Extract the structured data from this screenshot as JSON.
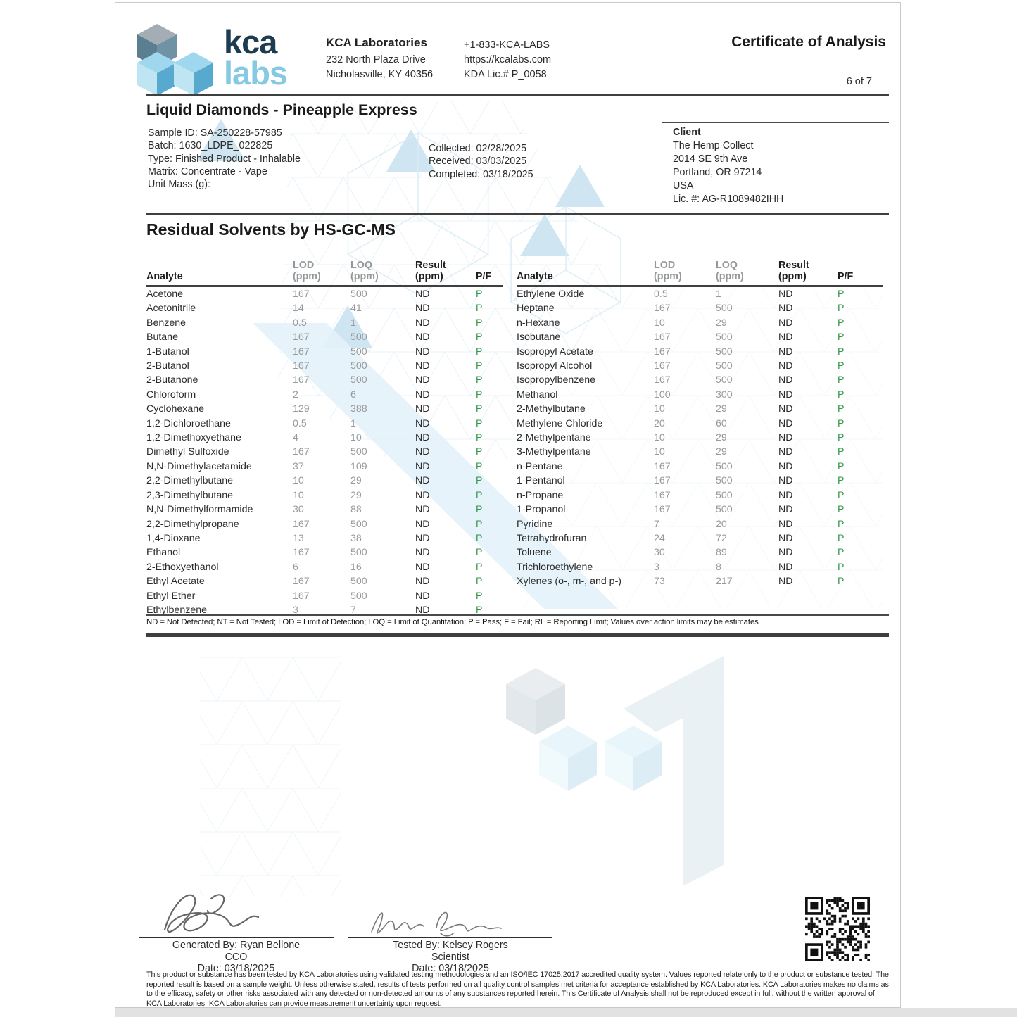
{
  "colors": {
    "brand_navy": "#1d3c50",
    "brand_light_blue": "#85c9e2",
    "pass_green": "#35984a",
    "muted_value_gray": "#97999b"
  },
  "header": {
    "logo_word_1": "kca",
    "logo_word_2": "labs",
    "lab_name": "KCA Laboratories",
    "address_line1": "232 North Plaza Drive",
    "address_line2": "Nicholasville, KY 40356",
    "phone": "+1-833-KCA-LABS",
    "website": "https://kcalabs.com",
    "kda_license": "KDA Lic.# P_0058",
    "doc_title": "Certificate of Analysis",
    "page_indicator": "6 of 7"
  },
  "sample": {
    "product_name": "Liquid Diamonds - Pineapple Express",
    "fields": [
      "Sample ID: SA-250228-57985",
      "Batch: 1630_LDPE_022825",
      "Type: Finished Product - Inhalable",
      "Matrix: Concentrate - Vape",
      "Unit Mass (g):"
    ],
    "dates": [
      "Collected: 02/28/2025",
      "Received: 03/03/2025",
      "Completed: 03/18/2025"
    ]
  },
  "client": {
    "heading": "Client",
    "lines": [
      "The Hemp Collect",
      "2014 SE 9th Ave",
      "Portland, OR 97214",
      "USA",
      "Lic. #: AG-R1089482IHH"
    ]
  },
  "section": {
    "title": "Residual Solvents by HS-GC-MS"
  },
  "table": {
    "headers": {
      "analyte": "Analyte",
      "lod": "LOD",
      "loq": "LOQ",
      "result": "Result",
      "unit": "(ppm)",
      "pf": "P/F"
    },
    "left_rows": [
      [
        "Acetone",
        "167",
        "500",
        "ND",
        "P"
      ],
      [
        "Acetonitrile",
        "14",
        "41",
        "ND",
        "P"
      ],
      [
        "Benzene",
        "0.5",
        "1",
        "ND",
        "P"
      ],
      [
        "Butane",
        "167",
        "500",
        "ND",
        "P"
      ],
      [
        "1-Butanol",
        "167",
        "500",
        "ND",
        "P"
      ],
      [
        "2-Butanol",
        "167",
        "500",
        "ND",
        "P"
      ],
      [
        "2-Butanone",
        "167",
        "500",
        "ND",
        "P"
      ],
      [
        "Chloroform",
        "2",
        "6",
        "ND",
        "P"
      ],
      [
        "Cyclohexane",
        "129",
        "388",
        "ND",
        "P"
      ],
      [
        "1,2-Dichloroethane",
        "0.5",
        "1",
        "ND",
        "P"
      ],
      [
        "1,2-Dimethoxyethane",
        "4",
        "10",
        "ND",
        "P"
      ],
      [
        "Dimethyl Sulfoxide",
        "167",
        "500",
        "ND",
        "P"
      ],
      [
        "N,N-Dimethylacetamide",
        "37",
        "109",
        "ND",
        "P"
      ],
      [
        "2,2-Dimethylbutane",
        "10",
        "29",
        "ND",
        "P"
      ],
      [
        "2,3-Dimethylbutane",
        "10",
        "29",
        "ND",
        "P"
      ],
      [
        "N,N-Dimethylformamide",
        "30",
        "88",
        "ND",
        "P"
      ],
      [
        "2,2-Dimethylpropane",
        "167",
        "500",
        "ND",
        "P"
      ],
      [
        "1,4-Dioxane",
        "13",
        "38",
        "ND",
        "P"
      ],
      [
        "Ethanol",
        "167",
        "500",
        "ND",
        "P"
      ],
      [
        "2-Ethoxyethanol",
        "6",
        "16",
        "ND",
        "P"
      ],
      [
        "Ethyl Acetate",
        "167",
        "500",
        "ND",
        "P"
      ],
      [
        "Ethyl Ether",
        "167",
        "500",
        "ND",
        "P"
      ],
      [
        "Ethylbenzene",
        "3",
        "7",
        "ND",
        "P"
      ]
    ],
    "right_rows": [
      [
        "Ethylene Oxide",
        "0.5",
        "1",
        "ND",
        "P"
      ],
      [
        "Heptane",
        "167",
        "500",
        "ND",
        "P"
      ],
      [
        "n-Hexane",
        "10",
        "29",
        "ND",
        "P"
      ],
      [
        "Isobutane",
        "167",
        "500",
        "ND",
        "P"
      ],
      [
        "Isopropyl Acetate",
        "167",
        "500",
        "ND",
        "P"
      ],
      [
        "Isopropyl Alcohol",
        "167",
        "500",
        "ND",
        "P"
      ],
      [
        "Isopropylbenzene",
        "167",
        "500",
        "ND",
        "P"
      ],
      [
        "Methanol",
        "100",
        "300",
        "ND",
        "P"
      ],
      [
        "2-Methylbutane",
        "10",
        "29",
        "ND",
        "P"
      ],
      [
        "Methylene Chloride",
        "20",
        "60",
        "ND",
        "P"
      ],
      [
        "2-Methylpentane",
        "10",
        "29",
        "ND",
        "P"
      ],
      [
        "3-Methylpentane",
        "10",
        "29",
        "ND",
        "P"
      ],
      [
        "n-Pentane",
        "167",
        "500",
        "ND",
        "P"
      ],
      [
        "1-Pentanol",
        "167",
        "500",
        "ND",
        "P"
      ],
      [
        "n-Propane",
        "167",
        "500",
        "ND",
        "P"
      ],
      [
        "1-Propanol",
        "167",
        "500",
        "ND",
        "P"
      ],
      [
        "Pyridine",
        "7",
        "20",
        "ND",
        "P"
      ],
      [
        "Tetrahydrofuran",
        "24",
        "72",
        "ND",
        "P"
      ],
      [
        "Toluene",
        "30",
        "89",
        "ND",
        "P"
      ],
      [
        "Trichloroethylene",
        "3",
        "8",
        "ND",
        "P"
      ],
      [
        "Xylenes (o-, m-, and p-)",
        "73",
        "217",
        "ND",
        "P"
      ]
    ]
  },
  "footnote": "ND = Not Detected; NT = Not Tested; LOD = Limit of Detection; LOQ = Limit of Quantitation; P = Pass; F = Fail; RL = Reporting Limit; Values over action limits may be estimates",
  "signatures": {
    "left": {
      "by": "Generated By: Ryan Bellone",
      "role": "CCO",
      "date": "Date: 03/18/2025"
    },
    "right": {
      "by": "Tested By: Kelsey Rogers",
      "role": "Scientist",
      "date": "Date: 03/18/2025"
    }
  },
  "disclaimer": "This product or substance has been tested by KCA Laboratories using validated testing methodologies and an ISO/IEC 17025:2017 accredited quality system. Values reported relate only to the product or substance tested. The reported result is based on a sample weight. Unless otherwise stated, results of tests performed on all quality control samples met criteria for acceptance established by KCA Laboratories. KCA Laboratories makes no claims as to the efficacy, safety or other risks associated with any detected or non-detected amounts of any substances reported herein. This Certificate of Analysis shall not be reproduced except in full, without the written approval of KCA Laboratories. KCA Laboratories can provide measurement uncertainty upon request."
}
